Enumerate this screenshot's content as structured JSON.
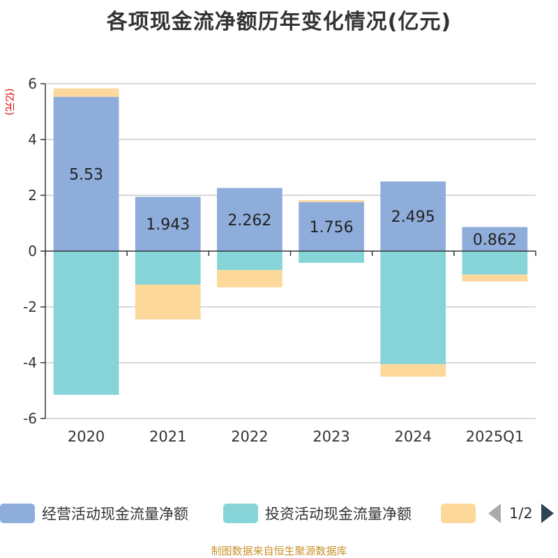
{
  "title": "各项现金流净额历年变化情况(亿元)",
  "y_unit_label": "(亿元)",
  "source_note": "制图数据来自恒生聚源数据库",
  "legend": {
    "pager_text": "1/2",
    "prev_icon": "triangle-left-icon",
    "next_icon": "triangle-right-icon"
  },
  "colors": {
    "operating": "#8eaddb",
    "investing": "#86d4d7",
    "financing": "#fdd89b",
    "axis": "#333333",
    "grid": "#cccccc",
    "unit_label": "#e00000"
  },
  "chart_data": {
    "type": "bar",
    "stacked": true,
    "categories": [
      "2020",
      "2021",
      "2022",
      "2023",
      "2024",
      "2025Q1"
    ],
    "ylim": [
      -6,
      6
    ],
    "yticks": [
      6,
      4,
      2,
      0,
      -2,
      -4,
      -6
    ],
    "ylabel": "(亿元)",
    "grid": true,
    "legend_position": "bottom",
    "series": [
      {
        "name": "经营活动现金流量净额",
        "key": "operating",
        "values": [
          5.53,
          1.943,
          2.262,
          1.756,
          2.495,
          0.862
        ],
        "labels": [
          "5.53",
          "1.943",
          "2.262",
          "1.756",
          "2.495",
          "0.862"
        ]
      },
      {
        "name": "投资活动现金流量净额",
        "key": "investing",
        "values": [
          -5.15,
          -1.2,
          -0.68,
          -0.42,
          -4.05,
          -0.84
        ]
      },
      {
        "name": "",
        "key": "financing",
        "values": [
          0.3,
          -1.25,
          -0.62,
          0.07,
          -0.45,
          -0.25
        ]
      }
    ]
  }
}
